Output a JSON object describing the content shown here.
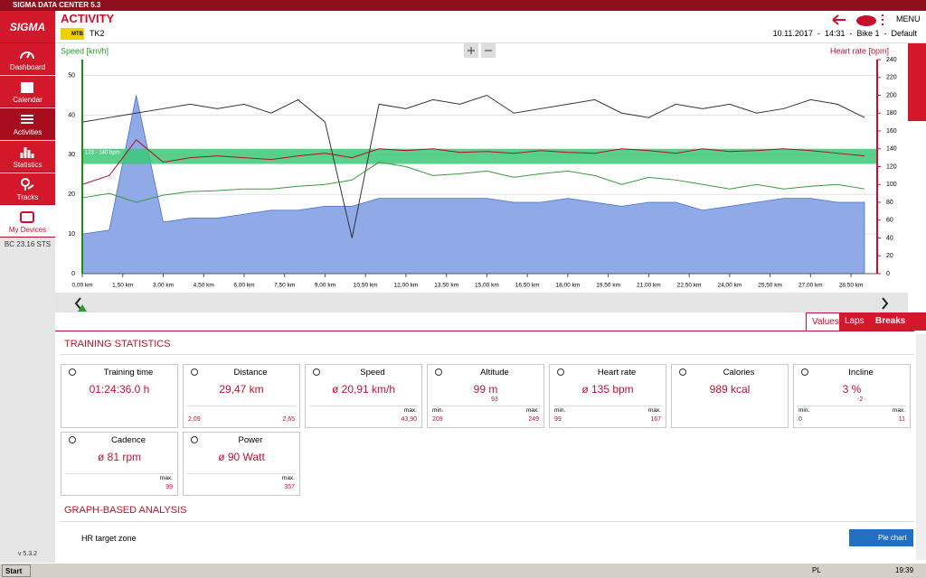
{
  "window_title": "SIGMA DATA CENTER 5.3",
  "sidebar": {
    "logo": "SIGMA",
    "items": [
      "Dashboard",
      "Calendar",
      "Activities",
      "Statistics",
      "Tracks",
      "My Devices"
    ],
    "device": "BC 23.16 STS",
    "version": "v 5.3.2"
  },
  "header": {
    "title": "ACTIVITY",
    "sport": "MTB",
    "name": "TK2",
    "menu": "MENU",
    "info": "10.11.2017  -  14:31  -  Bike 1  -  Default"
  },
  "chart_data": {
    "type": "line",
    "y_label": "Speed [km/h]",
    "y2_label": "Heart rate [bpm]",
    "zone_label": "123 - 140 bpm",
    "zone": [
      123,
      140
    ],
    "zone_color": "#3cc878",
    "x": [
      0,
      1,
      2,
      3,
      4,
      5,
      6,
      7,
      8,
      9,
      10,
      11,
      12,
      13,
      14,
      15,
      16,
      17,
      18,
      19,
      20,
      21,
      22,
      23,
      24,
      25,
      26,
      27,
      28,
      29
    ],
    "xlim": [
      0,
      29.47
    ],
    "xticks": [
      {
        "value": 0,
        "label": "0,00 km"
      },
      {
        "value": 1.5,
        "label": "1,50 km"
      },
      {
        "value": 3,
        "label": "3,00 km"
      },
      {
        "value": 4.5,
        "label": "4,50 km"
      },
      {
        "value": 6,
        "label": "6,00 km"
      },
      {
        "value": 7.5,
        "label": "7,50 km"
      },
      {
        "value": 9,
        "label": "9,00 km"
      },
      {
        "value": 10.5,
        "label": "10,50 km"
      },
      {
        "value": 12,
        "label": "12,00 km"
      },
      {
        "value": 13.5,
        "label": "13,50 km"
      },
      {
        "value": 15,
        "label": "15,00 km"
      },
      {
        "value": 16.5,
        "label": "16,50 km"
      },
      {
        "value": 18,
        "label": "18,00 km"
      },
      {
        "value": 19.5,
        "label": "19,50 km"
      },
      {
        "value": 21,
        "label": "21,00 km"
      },
      {
        "value": 22.5,
        "label": "22,50 km"
      },
      {
        "value": 24,
        "label": "24,00 km"
      },
      {
        "value": 25.5,
        "label": "25,50 km"
      },
      {
        "value": 27,
        "label": "27,00 km"
      },
      {
        "value": 28.5,
        "label": "28,50 km"
      }
    ],
    "ylim": [
      0,
      54
    ],
    "yticks": [
      0,
      10,
      20,
      30,
      40,
      50
    ],
    "y2lim": [
      0,
      240
    ],
    "y2ticks": [
      0,
      20,
      40,
      60,
      80,
      100,
      120,
      140,
      160,
      180,
      200,
      220,
      240
    ],
    "grid": true,
    "series": [
      {
        "color": "#8faae6",
        "fill": true,
        "values": [
          10,
          11,
          45,
          13,
          14,
          14,
          15,
          16,
          16,
          17,
          17,
          19,
          19,
          19,
          19,
          19,
          18,
          18,
          19,
          18,
          17,
          18,
          18,
          16,
          17,
          18,
          19,
          19,
          18,
          18
        ]
      },
      {
        "color": "#333333",
        "axis": "y2",
        "values": [
          170,
          175,
          180,
          185,
          190,
          185,
          190,
          180,
          195,
          170,
          40,
          190,
          185,
          195,
          190,
          200,
          180,
          185,
          190,
          195,
          180,
          175,
          190,
          185,
          190,
          180,
          185,
          195,
          190,
          175
        ]
      },
      {
        "color": "#3a9a3a",
        "axis": "y2",
        "values": [
          85,
          90,
          80,
          88,
          92,
          93,
          95,
          95,
          98,
          100,
          105,
          125,
          120,
          110,
          112,
          115,
          108,
          112,
          115,
          110,
          100,
          108,
          105,
          100,
          95,
          100,
          95,
          98,
          100,
          95
        ]
      },
      {
        "color": "#b01020",
        "axis": "y2",
        "values": [
          100,
          110,
          150,
          125,
          130,
          132,
          130,
          128,
          132,
          135,
          130,
          140,
          138,
          140,
          136,
          137,
          135,
          138,
          136,
          135,
          140,
          138,
          135,
          140,
          137,
          138,
          140,
          138,
          135,
          132
        ]
      }
    ]
  },
  "tabs": [
    "Values",
    "Laps",
    "Breaks"
  ],
  "stats_title": "TRAINING STATISTICS",
  "cards": [
    {
      "title": "Training time",
      "value": "01:24:36.0 h"
    },
    {
      "title": "Distance",
      "value": "29,47 km",
      "left": "2,09",
      "right": "2,65"
    },
    {
      "title": "Speed",
      "value": "ø 20,91 km/h",
      "right_label": "max.",
      "right": "43,90"
    },
    {
      "title": "Altitude",
      "value": "99 m",
      "sub": "93",
      "left_label": "min.",
      "left": "209",
      "right_label": "max.",
      "right": "249"
    },
    {
      "title": "Heart rate",
      "value": "ø 135 bpm",
      "left_label": "min.",
      "left": "99",
      "right_label": "max.",
      "right": "167"
    },
    {
      "title": "Calories",
      "value": "989 kcal"
    },
    {
      "title": "Incline",
      "value": "3 %",
      "sub": "-2",
      "left_label": "min.",
      "left": "0",
      "right_label": "max.",
      "right": "11"
    },
    {
      "title": "Cadence",
      "value": "ø 81 rpm",
      "right_label": "max.",
      "right": "99"
    },
    {
      "title": "Power",
      "value": "ø 90 Watt",
      "right_label": "max.",
      "right": "357"
    }
  ],
  "graph_title": "GRAPH-BASED ANALYSIS",
  "hr_zone": "HR target zone",
  "pie_button": "Pie chart",
  "taskbar": {
    "start": "Start",
    "lang": "PL",
    "clock": "19:39"
  }
}
